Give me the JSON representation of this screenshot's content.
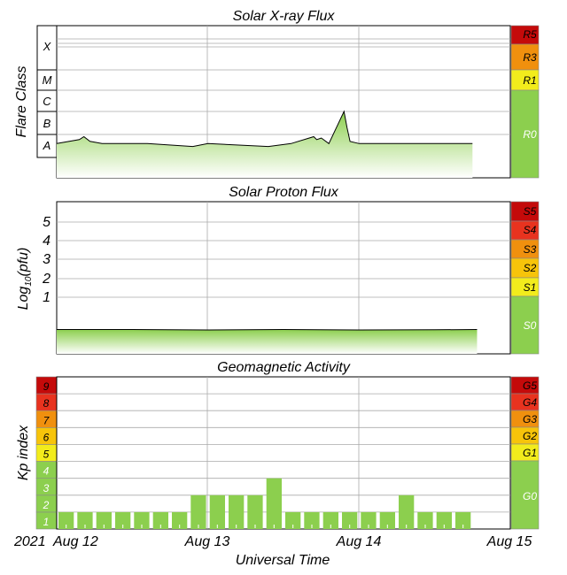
{
  "colors": {
    "green": "#8ccf4e",
    "green_light": "#d8f0c4",
    "yellow": "#f2ec1c",
    "orange_light": "#f7c40a",
    "orange": "#f0900e",
    "red_light": "#e8331f",
    "red": "#c40a0a",
    "line": "#000000",
    "grid": "#aaaaaa"
  },
  "panels": {
    "xray": {
      "title": "Solar X-ray Flux",
      "ylabel": "Flare Class"
    },
    "proton": {
      "title": "Solar Proton Flux",
      "ylabel_main": "Log",
      "ylabel_sub": "10",
      "ylabel_tail": "(pfu)"
    },
    "geomag": {
      "title": "Geomagnetic Activity",
      "ylabel": "Kp index"
    }
  },
  "xaxis": {
    "title": "Universal Time",
    "year": "2021",
    "ticks": [
      "Aug 12",
      "Aug 13",
      "Aug 14",
      "Aug 15"
    ]
  },
  "chart_data": [
    {
      "type": "area",
      "title": "Solar X-ray Flux",
      "ylabel": "Flare Class",
      "y_scale": "log",
      "class_labels": [
        "A",
        "B",
        "C",
        "M",
        "X"
      ],
      "x_unit": "days since 2021 Aug 12 00:00 UT",
      "xlim": [
        0,
        3
      ],
      "baseline_class": "A",
      "series": [
        {
          "name": "",
          "x": [
            0.0,
            0.15,
            0.18,
            0.22,
            0.3,
            0.6,
            0.9,
            1.0,
            1.4,
            1.55,
            1.7,
            1.72,
            1.75,
            1.8,
            1.9,
            1.92,
            1.94,
            2.0,
            2.3,
            2.6,
            2.75
          ],
          "y": [
            "A4",
            "A6",
            "A8",
            "A5",
            "A4",
            "A4",
            "A3",
            "A4",
            "A3",
            "A4",
            "A8",
            "A6",
            "A7",
            "A4",
            "C1",
            "B2",
            "A5",
            "A4",
            "A4",
            "A4",
            "A4"
          ]
        }
      ],
      "scale_labels": [
        "R5",
        "R3",
        "R1",
        "R0"
      ]
    },
    {
      "type": "area",
      "title": "Solar Proton Flux",
      "ylabel": "Log10(pfu)",
      "yticks": [
        1,
        2,
        3,
        4,
        5
      ],
      "ylim": [
        -1.2,
        6
      ],
      "x_unit": "days since 2021 Aug 12 00:00 UT",
      "xlim": [
        0,
        3
      ],
      "series": [
        {
          "name": "",
          "x": [
            0.0,
            0.5,
            1.0,
            1.5,
            2.0,
            2.5,
            2.78
          ],
          "y": [
            -0.05,
            -0.05,
            -0.07,
            -0.05,
            -0.07,
            -0.06,
            -0.05
          ]
        }
      ],
      "scale_labels": [
        "S5",
        "S4",
        "S3",
        "S2",
        "S1",
        "S0"
      ]
    },
    {
      "type": "bar",
      "title": "Geomagnetic Activity",
      "ylabel": "Kp index",
      "yticks": [
        1,
        2,
        3,
        4,
        5,
        6,
        7,
        8,
        9
      ],
      "ylim": [
        0,
        9
      ],
      "x_unit": "days since 2021 Aug 12 00:00 UT",
      "xlim": [
        0,
        3
      ],
      "bar_width_days": 0.125,
      "x": [
        0,
        0.125,
        0.25,
        0.375,
        0.5,
        0.625,
        0.75,
        0.875,
        1.0,
        1.125,
        1.25,
        1.375,
        1.5,
        1.625,
        1.75,
        1.875,
        2.0,
        2.125,
        2.25,
        2.375,
        2.5,
        2.625
      ],
      "values": [
        1,
        1,
        1,
        1,
        1,
        1,
        1,
        2,
        2,
        2,
        2,
        3,
        1,
        1,
        1,
        1,
        1,
        1,
        2,
        1,
        1,
        1
      ],
      "scale_labels": [
        "G5",
        "G4",
        "G3",
        "G2",
        "G1",
        "G0"
      ]
    }
  ]
}
